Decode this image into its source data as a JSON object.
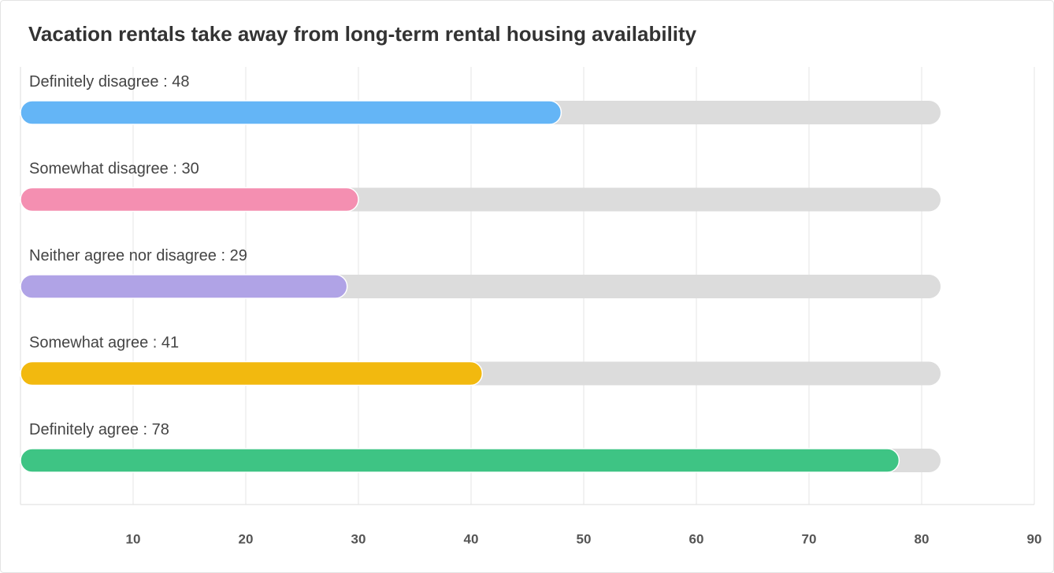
{
  "chart_data": {
    "type": "bar",
    "orientation": "horizontal",
    "title": "Vacation rentals take away from long-term rental housing availability",
    "categories": [
      "Definitely disagree",
      "Somewhat disagree",
      "Neither agree nor disagree",
      "Somewhat agree",
      "Definitely agree"
    ],
    "label_separator": " : ",
    "values": [
      48,
      30,
      29,
      41,
      78
    ],
    "colors": [
      "#64b5f6",
      "#f48fb1",
      "#b0a3e6",
      "#f2b90f",
      "#3ec484"
    ],
    "xlim": [
      0,
      90
    ],
    "xticks": [
      10,
      20,
      30,
      40,
      50,
      60,
      70,
      80,
      90
    ],
    "grid": true
  }
}
